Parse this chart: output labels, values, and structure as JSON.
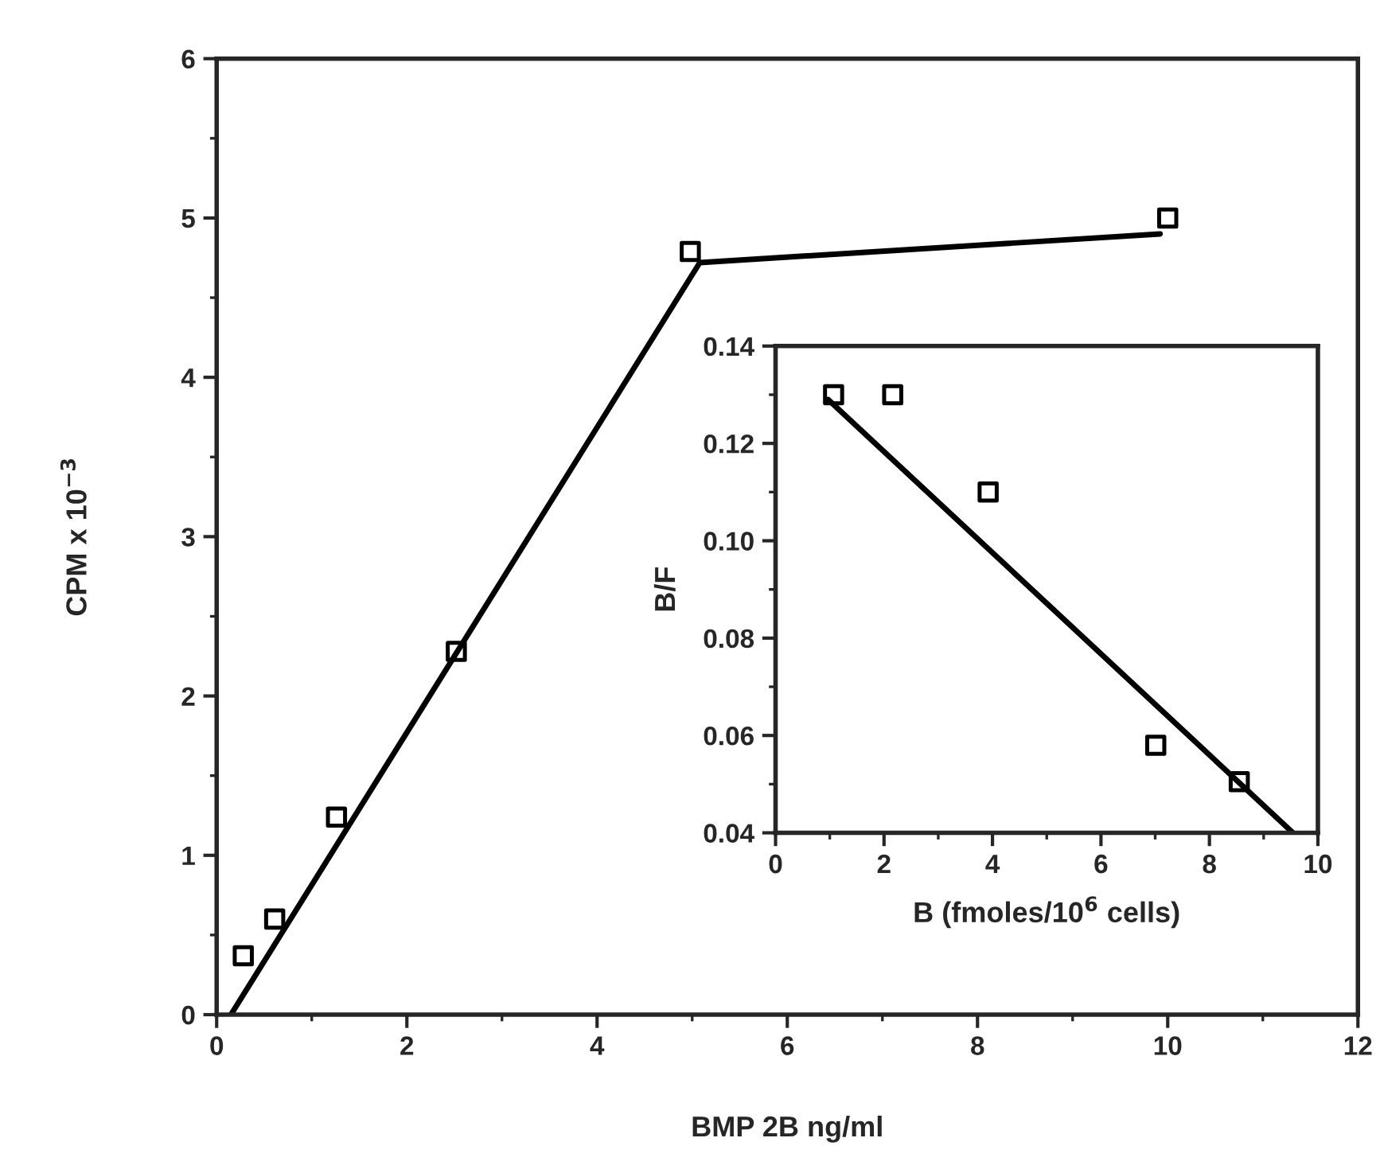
{
  "chart_data": [
    {
      "type": "scatter",
      "xlabel": "BMP 2B ng/ml",
      "ylabel": "CPM x 10$^{−3}$",
      "series": [
        {
          "color": "#000000",
          "marker": "square",
          "x": [
            0.28,
            0.61,
            1.26,
            2.52,
            4.98,
            10.0
          ],
          "values": [
            0.37,
            0.6,
            1.24,
            2.28,
            4.79,
            5.0
          ]
        },
        {
          "type": "line",
          "color": "#000000",
          "marker": "none",
          "line_style": "solid",
          "x": [
            0.15,
            5.08,
            9.92
          ],
          "values": [
            0,
            4.72,
            4.9
          ]
        }
      ],
      "xlim": [
        0,
        12
      ],
      "ylim": [
        0,
        6
      ],
      "xticks": [
        0,
        {
          "value": 1,
          "label": null
        },
        2,
        {
          "value": 3,
          "label": null
        },
        4,
        {
          "value": 5,
          "label": null
        },
        6,
        {
          "value": 7,
          "label": null
        },
        8,
        {
          "value": 9,
          "label": null
        },
        10,
        {
          "value": 11,
          "label": null
        },
        12
      ],
      "yticks": [
        0,
        {
          "value": 0.5,
          "label": null
        },
        1,
        {
          "value": 1.5,
          "label": null
        },
        2,
        {
          "value": 2.5,
          "label": null
        },
        3,
        {
          "value": 3.5,
          "label": null
        },
        4,
        {
          "value": 4.5,
          "label": null
        },
        5,
        {
          "value": 5.5,
          "label": null
        },
        6
      ],
      "grid": false,
      "legend": false
    },
    {
      "type": "scatter",
      "xlabel": "B (fmoles/10$^{6}$ cells)",
      "ylabel": "B/F",
      "series": [
        {
          "color": "#000000",
          "marker": "square",
          "x": [
            1.07,
            2.16,
            3.92,
            7.01,
            8.55
          ],
          "values": [
            0.13,
            0.13,
            0.11,
            0.058,
            0.0505
          ]
        },
        {
          "type": "line",
          "color": "#000000",
          "marker": "none",
          "line_style": "solid",
          "x": [
            0.97,
            9.54
          ],
          "values": [
            0.129,
            0.04
          ]
        }
      ],
      "xlim": [
        0,
        10
      ],
      "ylim": [
        0.04,
        0.14
      ],
      "xticks": [
        0,
        {
          "value": 1,
          "label": null
        },
        2,
        {
          "value": 3,
          "label": null
        },
        4,
        {
          "value": 5,
          "label": null
        },
        6,
        {
          "value": 7,
          "label": null
        },
        8,
        {
          "value": 9,
          "label": null
        },
        10
      ],
      "yticks": [
        {
          "value": 0.04,
          "label": "0.04"
        },
        {
          "value": 0.05,
          "label": null
        },
        {
          "value": 0.06,
          "label": "0.06"
        },
        {
          "value": 0.07,
          "label": null
        },
        {
          "value": 0.08,
          "label": "0.08"
        },
        {
          "value": 0.09,
          "label": null
        },
        {
          "value": 0.1,
          "label": "0.10"
        },
        {
          "value": 0.11,
          "label": null
        },
        {
          "value": 0.12,
          "label": "0.12"
        },
        {
          "value": 0.13,
          "label": null
        },
        {
          "value": 0.14,
          "label": "0.14"
        }
      ],
      "grid": false,
      "legend": false
    }
  ]
}
